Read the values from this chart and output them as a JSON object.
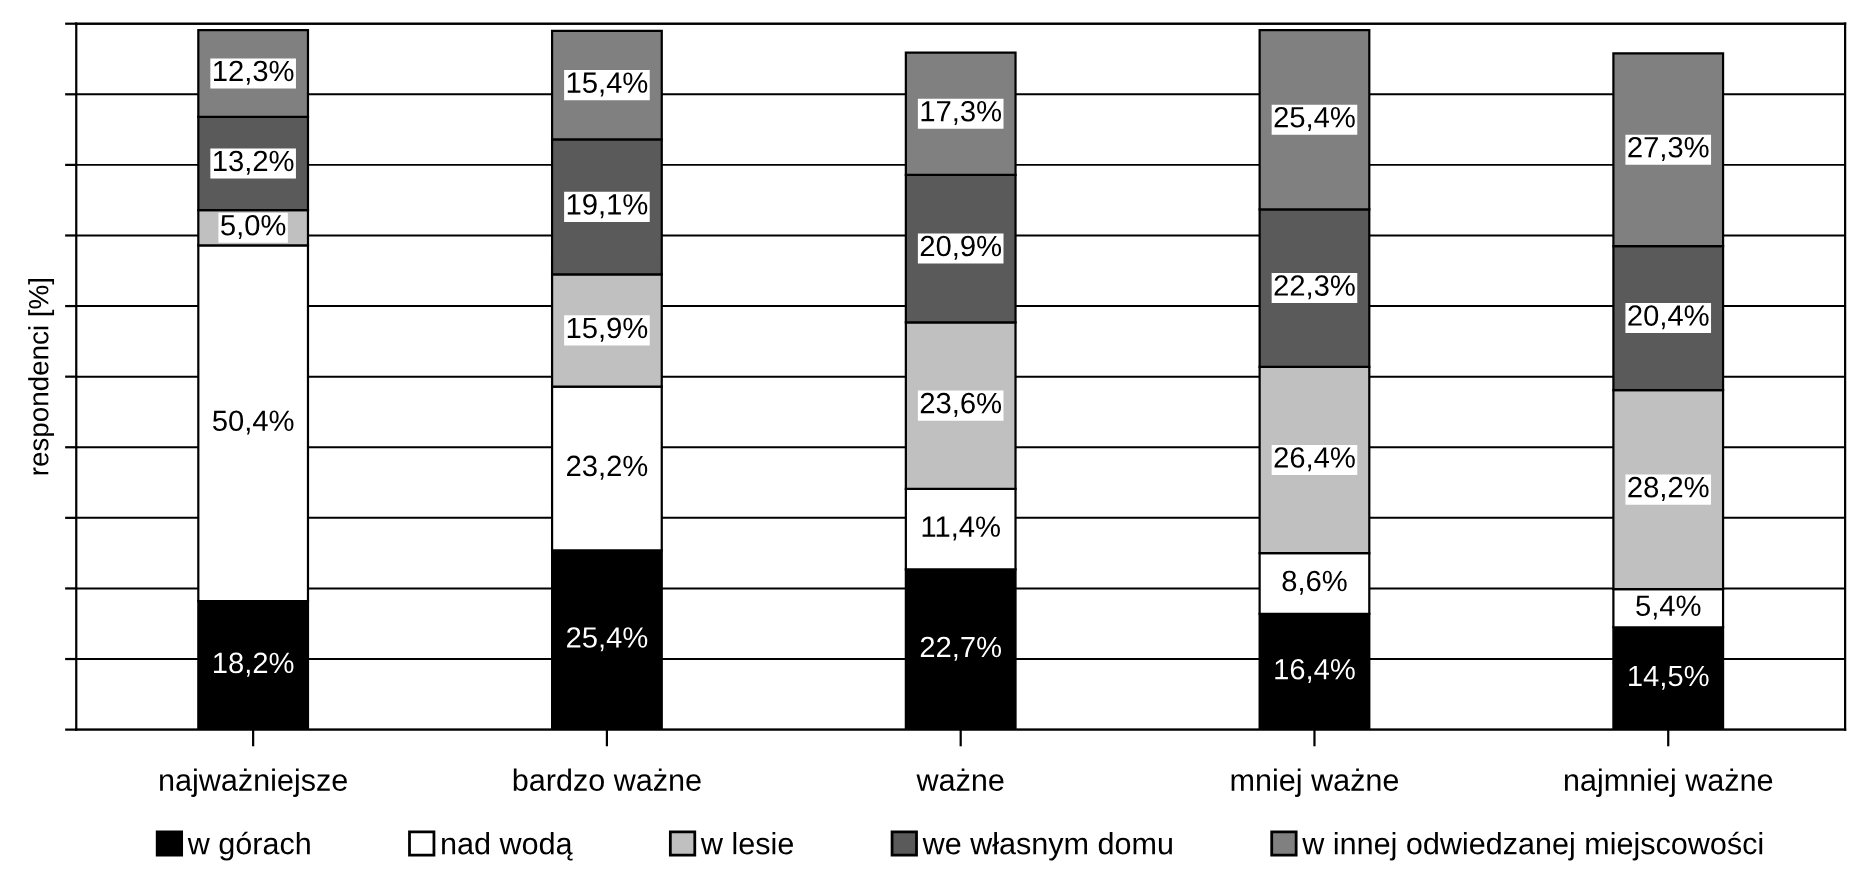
{
  "chart_data": {
    "type": "bar",
    "stacked": true,
    "ylabel": "respondenci [%]",
    "categories": [
      "najważniejsze",
      "bardzo ważne",
      "ważne",
      "mniej ważne",
      "najmniej ważne"
    ],
    "series": [
      {
        "name": "w górach",
        "color": "#000000",
        "values": [
          18.2,
          25.4,
          22.7,
          16.4,
          14.5
        ],
        "value_labels": [
          "18,2%",
          "25,4%",
          "22,7%",
          "16,4%",
          "14,5%"
        ]
      },
      {
        "name": "nad wodą",
        "color": "#ffffff",
        "values": [
          50.4,
          23.2,
          11.4,
          8.6,
          5.4
        ],
        "value_labels": [
          "50,4%",
          "23,2%",
          "11,4%",
          "8,6%",
          "5,4%"
        ]
      },
      {
        "name": "w lesie",
        "color": "#c0c0c0",
        "values": [
          5.0,
          15.9,
          23.6,
          26.4,
          28.2
        ],
        "value_labels": [
          "5,0%",
          "15,9%",
          "23,6%",
          "26,4%",
          "28,2%"
        ]
      },
      {
        "name": "we własnym domu",
        "color": "#5a5a5a",
        "values": [
          13.2,
          19.1,
          20.9,
          22.3,
          20.4
        ],
        "value_labels": [
          "13,2%",
          "19,1%",
          "20,9%",
          "22,3%",
          "20,4%"
        ]
      },
      {
        "name": "w innej odwiedzanej miejscowości",
        "color": "#808080",
        "values": [
          12.3,
          15.4,
          17.3,
          25.4,
          27.3
        ],
        "value_labels": [
          "12,3%",
          "15,4%",
          "17,3%",
          "25,4%",
          "27,3%"
        ]
      }
    ],
    "ylim": [
      0,
      100
    ],
    "yticks": [
      {
        "value": 0,
        "label": null
      },
      {
        "value": 10,
        "label": null
      },
      {
        "value": 20,
        "label": null
      },
      {
        "value": 30,
        "label": null
      },
      {
        "value": 40,
        "label": null
      },
      {
        "value": 50,
        "label": null
      },
      {
        "value": 60,
        "label": null
      },
      {
        "value": 70,
        "label": null
      },
      {
        "value": 80,
        "label": null
      },
      {
        "value": 90,
        "label": null
      },
      {
        "value": 100,
        "label": null
      }
    ],
    "tick_labels": "x",
    "grid": "y",
    "legend": "bottom"
  }
}
